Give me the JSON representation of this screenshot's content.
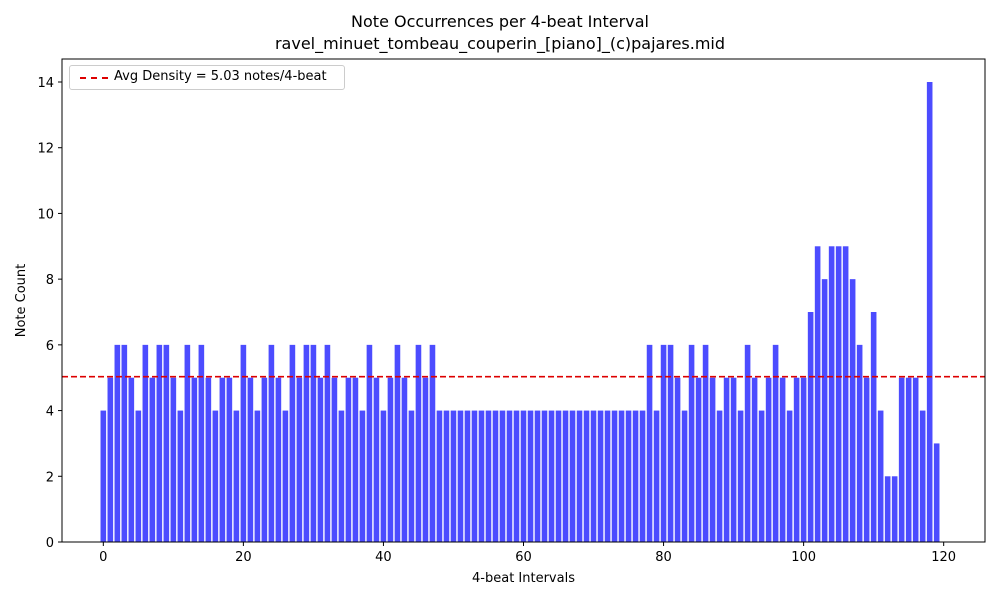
{
  "chart_data": {
    "type": "bar",
    "title": "Note Occurrences per 4-beat Interval",
    "subtitle": "ravel_minuet_tombeau_couperin_[piano]_(c)pajares.mid",
    "xlabel": "4-beat Intervals",
    "ylabel": "Note Count",
    "xlim": [
      -5.9,
      125.9
    ],
    "ylim": [
      0,
      14.7
    ],
    "x_ticks": [
      0,
      20,
      40,
      60,
      80,
      100,
      120
    ],
    "y_ticks": [
      0,
      2,
      4,
      6,
      8,
      10,
      12,
      14
    ],
    "bar_color": "#0000ff",
    "bar_opacity": 0.7,
    "average": {
      "value": 5.03,
      "color": "#dd0000",
      "style": "dashed",
      "label": "Avg Density = 5.03 notes/4-beat"
    },
    "legend_position": "top-left",
    "grid": false,
    "values": [
      4,
      5,
      6,
      6,
      5,
      4,
      6,
      5,
      6,
      6,
      5,
      4,
      6,
      5,
      6,
      5,
      4,
      5,
      5,
      4,
      6,
      5,
      4,
      5,
      6,
      5,
      4,
      6,
      5,
      6,
      6,
      5,
      6,
      5,
      4,
      5,
      5,
      4,
      6,
      5,
      4,
      5,
      6,
      5,
      4,
      6,
      5,
      6,
      4,
      4,
      4,
      4,
      4,
      4,
      4,
      4,
      4,
      4,
      4,
      4,
      4,
      4,
      4,
      4,
      4,
      4,
      4,
      4,
      4,
      4,
      4,
      4,
      4,
      4,
      4,
      4,
      4,
      4,
      6,
      4,
      6,
      6,
      5,
      4,
      6,
      5,
      6,
      5,
      4,
      5,
      5,
      4,
      6,
      5,
      4,
      5,
      6,
      5,
      4,
      5,
      5,
      7,
      9,
      8,
      9,
      9,
      9,
      8,
      6,
      5,
      7,
      4,
      2,
      2,
      5,
      5,
      5,
      4,
      14,
      3
    ]
  }
}
